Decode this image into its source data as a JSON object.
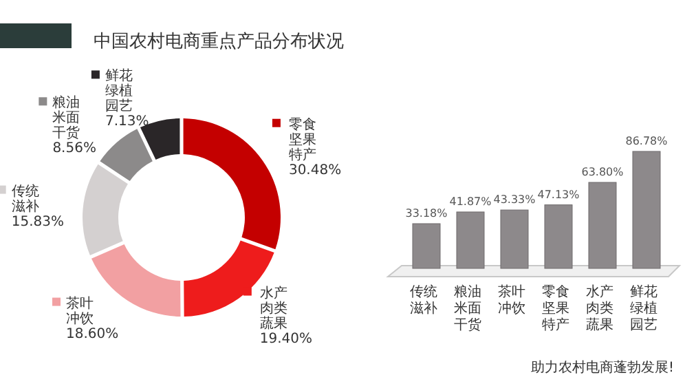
{
  "chart_data": [
    {
      "type": "donut",
      "title": "中国农村电商重点产品分布状况",
      "categories": [
        "零食坚果特产",
        "水产肉类蔬果",
        "茶叶冲饮",
        "传统滋补",
        "粮油米面干货",
        "鲜花绿植园艺"
      ],
      "values": [
        30.48,
        19.4,
        18.6,
        15.83,
        8.56,
        7.13
      ],
      "colors": [
        "#c40000",
        "#ee1c1c",
        "#f2a0a2",
        "#d4d0d0",
        "#8c8a8a",
        "#2a2628"
      ],
      "legend": "left",
      "value_labels": [
        "30.48%",
        "19.40%",
        "18.60%",
        "15.83%",
        "8.56%",
        "7.13%"
      ]
    },
    {
      "type": "bar",
      "categories": [
        "传统滋补",
        "粮油米面干货",
        "茶叶冲饮",
        "零食坚果特产",
        "水产肉类蔬果",
        "鲜花绿植园艺"
      ],
      "values": [
        33.18,
        41.87,
        43.33,
        47.13,
        63.8,
        86.78
      ],
      "color": "#8d898b",
      "value_labels": [
        "33.18%",
        "41.87%",
        "43.33%",
        "47.13%",
        "63.80%",
        "86.78%"
      ],
      "annotations": [
        "助力农村电商蓬勃发展!"
      ]
    }
  ]
}
